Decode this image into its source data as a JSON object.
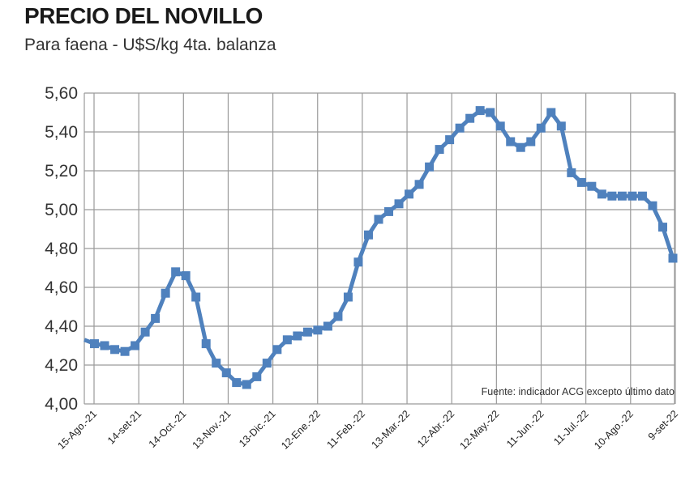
{
  "title": "PRECIO DEL NOVILLO",
  "subtitle": "Para faena - U$S/kg 4ta. balanza",
  "source_note": "Fuente: indicador ACG excepto último dato",
  "colors": {
    "line": "#4f81bd",
    "marker": "#4f81bd",
    "grid": "#9a9a9a"
  },
  "chart_data": {
    "type": "line",
    "title": "PRECIO DEL NOVILLO",
    "subtitle": "Para faena - U$S/kg 4ta. balanza",
    "ylim": [
      4.0,
      5.6
    ],
    "yticks": [
      "5,60",
      "5,40",
      "5,20",
      "5,00",
      "4,80",
      "4,60",
      "4,40",
      "4,20",
      "4,00"
    ],
    "ytick_values": [
      5.6,
      5.4,
      5.2,
      5.0,
      4.8,
      4.6,
      4.4,
      4.2,
      4.0
    ],
    "xticks": [
      "15-Ago.-21",
      "14-set-21",
      "14-Oct.-21",
      "13-Nov.-21",
      "13-Dic.-21",
      "12-Ene.-22",
      "11-Feb.-22",
      "13-Mar.-22",
      "12-Abr.-22",
      "12-May.-22",
      "11-Jun.-22",
      "11-Jul.-22",
      "10-Ago.-22",
      "9-set-22"
    ],
    "grid": "vertical and horizontal",
    "series": [
      {
        "values": [
          4.33,
          4.31,
          4.3,
          4.28,
          4.27,
          4.3,
          4.37,
          4.44,
          4.57,
          4.68,
          4.66,
          4.55,
          4.31,
          4.21,
          4.16,
          4.11,
          4.1,
          4.14,
          4.21,
          4.28,
          4.33,
          4.35,
          4.37,
          4.38,
          4.4,
          4.45,
          4.55,
          4.73,
          4.87,
          4.95,
          4.99,
          5.03,
          5.08,
          5.13,
          5.22,
          5.31,
          5.36,
          5.42,
          5.47,
          5.51,
          5.5,
          5.43,
          5.35,
          5.32,
          5.35,
          5.42,
          5.5,
          5.43,
          5.19,
          5.14,
          5.12,
          5.08,
          5.07,
          5.07,
          5.07,
          5.07,
          5.02,
          4.91,
          4.75
        ]
      }
    ]
  }
}
